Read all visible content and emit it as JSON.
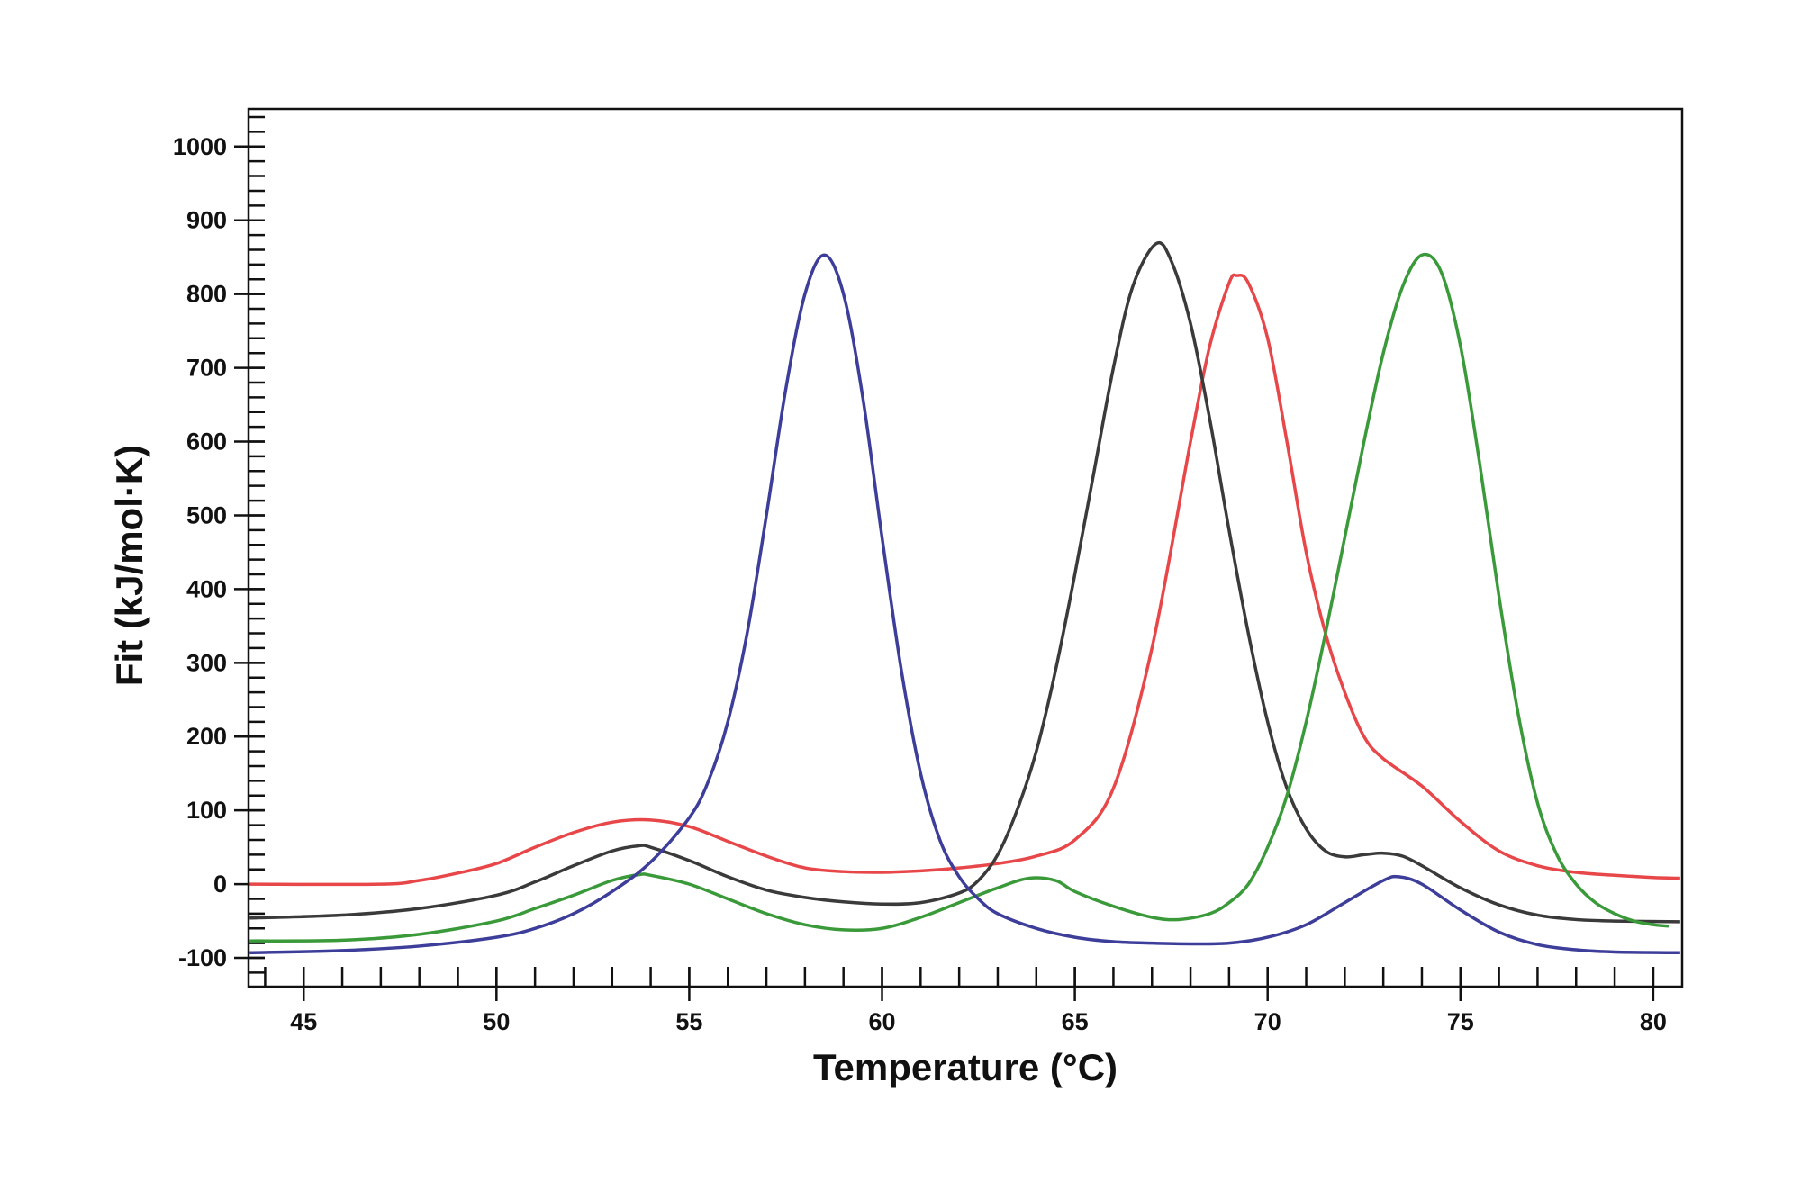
{
  "chart_data": {
    "type": "line",
    "title": "",
    "xlabel": "Temperature (°C)",
    "ylabel": "Fit (kJ/mol·K)",
    "xlim": [
      43.57,
      80.75
    ],
    "ylim": [
      -139,
      1051
    ],
    "xticks": [
      45,
      50,
      55,
      60,
      65,
      70,
      75,
      80
    ],
    "yticks": [
      -100,
      0,
      100,
      200,
      300,
      400,
      500,
      600,
      700,
      800,
      900,
      1000
    ],
    "x_minor_step": 1,
    "y_minor_step": 20,
    "grid": false,
    "legend": "none",
    "series": [
      {
        "color": "#e8474a",
        "points": [
          [
            43.6,
            0
          ],
          [
            47,
            0
          ],
          [
            48,
            5
          ],
          [
            49,
            15
          ],
          [
            50,
            28
          ],
          [
            51,
            50
          ],
          [
            52,
            70
          ],
          [
            53,
            84
          ],
          [
            54,
            87
          ],
          [
            55,
            78
          ],
          [
            56,
            58
          ],
          [
            57,
            38
          ],
          [
            58,
            22
          ],
          [
            59,
            17
          ],
          [
            60,
            16
          ],
          [
            61,
            18
          ],
          [
            62,
            22
          ],
          [
            63,
            28
          ],
          [
            64,
            38
          ],
          [
            65,
            60
          ],
          [
            66,
            130
          ],
          [
            67,
            320
          ],
          [
            68,
            600
          ],
          [
            68.5,
            730
          ],
          [
            69,
            815
          ],
          [
            69.2,
            825
          ],
          [
            69.5,
            815
          ],
          [
            70,
            740
          ],
          [
            70.5,
            600
          ],
          [
            71,
            450
          ],
          [
            71.5,
            340
          ],
          [
            72,
            260
          ],
          [
            72.5,
            200
          ],
          [
            73,
            170
          ],
          [
            74,
            133
          ],
          [
            75,
            85
          ],
          [
            76,
            45
          ],
          [
            77,
            25
          ],
          [
            78,
            16
          ],
          [
            79,
            12
          ],
          [
            80,
            9
          ],
          [
            80.7,
            8
          ]
        ]
      },
      {
        "color": "#3a3a3a",
        "points": [
          [
            43.6,
            -46
          ],
          [
            46,
            -42
          ],
          [
            48,
            -33
          ],
          [
            50,
            -15
          ],
          [
            51,
            3
          ],
          [
            52,
            25
          ],
          [
            53,
            45
          ],
          [
            53.7,
            52
          ],
          [
            54,
            50
          ],
          [
            55,
            32
          ],
          [
            56,
            10
          ],
          [
            57,
            -8
          ],
          [
            58,
            -18
          ],
          [
            59,
            -24
          ],
          [
            60,
            -27
          ],
          [
            61,
            -25
          ],
          [
            62,
            -12
          ],
          [
            62.5,
            5
          ],
          [
            63,
            40
          ],
          [
            63.5,
            100
          ],
          [
            64,
            180
          ],
          [
            64.5,
            290
          ],
          [
            65,
            420
          ],
          [
            65.5,
            560
          ],
          [
            66,
            700
          ],
          [
            66.5,
            810
          ],
          [
            67.1,
            868
          ],
          [
            67.5,
            845
          ],
          [
            68,
            760
          ],
          [
            68.5,
            630
          ],
          [
            69,
            480
          ],
          [
            69.5,
            340
          ],
          [
            70,
            220
          ],
          [
            70.5,
            130
          ],
          [
            71,
            75
          ],
          [
            71.5,
            45
          ],
          [
            72,
            37
          ],
          [
            72.5,
            40
          ],
          [
            73,
            42
          ],
          [
            73.5,
            38
          ],
          [
            74,
            25
          ],
          [
            75,
            -5
          ],
          [
            76,
            -28
          ],
          [
            77,
            -42
          ],
          [
            78,
            -48
          ],
          [
            79,
            -50
          ],
          [
            80.7,
            -51
          ]
        ]
      },
      {
        "color": "#3a9a3a",
        "points": [
          [
            43.6,
            -77
          ],
          [
            46,
            -76
          ],
          [
            48,
            -68
          ],
          [
            50,
            -50
          ],
          [
            51,
            -33
          ],
          [
            52,
            -15
          ],
          [
            53,
            5
          ],
          [
            53.7,
            13
          ],
          [
            54,
            12
          ],
          [
            55,
            0
          ],
          [
            56,
            -20
          ],
          [
            57,
            -40
          ],
          [
            58,
            -55
          ],
          [
            59,
            -62
          ],
          [
            60,
            -60
          ],
          [
            61,
            -45
          ],
          [
            62,
            -25
          ],
          [
            63,
            -5
          ],
          [
            63.8,
            8
          ],
          [
            64.5,
            5
          ],
          [
            65,
            -10
          ],
          [
            66,
            -30
          ],
          [
            67,
            -45
          ],
          [
            67.7,
            -48
          ],
          [
            68.5,
            -40
          ],
          [
            69,
            -25
          ],
          [
            69.5,
            0
          ],
          [
            70,
            50
          ],
          [
            70.5,
            120
          ],
          [
            71,
            220
          ],
          [
            71.5,
            340
          ],
          [
            72,
            470
          ],
          [
            72.5,
            600
          ],
          [
            73,
            720
          ],
          [
            73.5,
            810
          ],
          [
            74,
            853
          ],
          [
            74.5,
            830
          ],
          [
            75,
            730
          ],
          [
            75.5,
            570
          ],
          [
            76,
            390
          ],
          [
            76.5,
            230
          ],
          [
            77,
            110
          ],
          [
            77.5,
            40
          ],
          [
            78,
            0
          ],
          [
            78.5,
            -25
          ],
          [
            79,
            -40
          ],
          [
            79.5,
            -50
          ],
          [
            80,
            -55
          ],
          [
            80.4,
            -57
          ]
        ]
      },
      {
        "color": "#3d3d9a",
        "points": [
          [
            43.6,
            -93
          ],
          [
            46,
            -90
          ],
          [
            48,
            -84
          ],
          [
            50,
            -72
          ],
          [
            51,
            -60
          ],
          [
            52,
            -40
          ],
          [
            53,
            -10
          ],
          [
            54,
            30
          ],
          [
            55,
            90
          ],
          [
            55.5,
            140
          ],
          [
            56,
            220
          ],
          [
            56.5,
            340
          ],
          [
            57,
            500
          ],
          [
            57.5,
            670
          ],
          [
            58,
            800
          ],
          [
            58.5,
            853
          ],
          [
            59,
            800
          ],
          [
            59.5,
            660
          ],
          [
            60,
            470
          ],
          [
            60.5,
            290
          ],
          [
            61,
            150
          ],
          [
            61.5,
            60
          ],
          [
            62,
            10
          ],
          [
            62.5,
            -20
          ],
          [
            63,
            -40
          ],
          [
            64,
            -60
          ],
          [
            65,
            -72
          ],
          [
            66,
            -78
          ],
          [
            67,
            -80
          ],
          [
            68,
            -81
          ],
          [
            69,
            -80
          ],
          [
            70,
            -72
          ],
          [
            71,
            -55
          ],
          [
            72,
            -25
          ],
          [
            73,
            5
          ],
          [
            73.4,
            10
          ],
          [
            74,
            0
          ],
          [
            75,
            -35
          ],
          [
            76,
            -65
          ],
          [
            77,
            -82
          ],
          [
            78,
            -89
          ],
          [
            79,
            -92
          ],
          [
            80.7,
            -93
          ]
        ]
      }
    ]
  }
}
